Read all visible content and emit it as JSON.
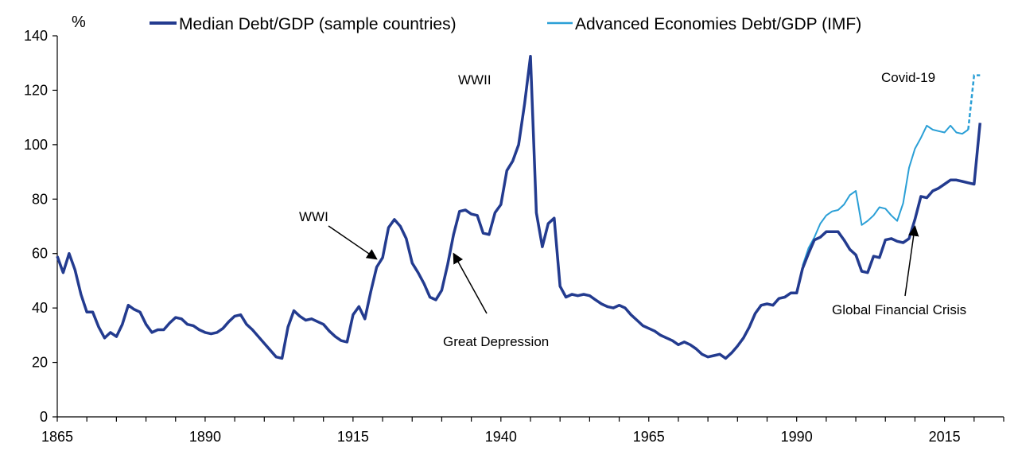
{
  "chart_data": {
    "type": "line",
    "ylabel": "%",
    "xlim": [
      1865,
      2025
    ],
    "ylim": [
      0,
      140
    ],
    "xticks": [
      1865,
      1890,
      1915,
      1940,
      1965,
      1990,
      2015
    ],
    "yticks": [
      0,
      20,
      40,
      60,
      80,
      100,
      120,
      140
    ],
    "legend_position": "top",
    "grid": false,
    "series": [
      {
        "name": "Median Debt/GDP (sample countries)",
        "color": "#233B8F",
        "points": [
          [
            1865,
            59
          ],
          [
            1866,
            53
          ],
          [
            1867,
            60
          ],
          [
            1868,
            54
          ],
          [
            1869,
            45
          ],
          [
            1870,
            38.5
          ],
          [
            1871,
            38.5
          ],
          [
            1872,
            33
          ],
          [
            1873,
            29
          ],
          [
            1874,
            31
          ],
          [
            1875,
            29.5
          ],
          [
            1876,
            34
          ],
          [
            1877,
            41
          ],
          [
            1878,
            39.5
          ],
          [
            1879,
            38.5
          ],
          [
            1880,
            34
          ],
          [
            1881,
            31
          ],
          [
            1882,
            32
          ],
          [
            1883,
            32
          ],
          [
            1884,
            34.5
          ],
          [
            1885,
            36.5
          ],
          [
            1886,
            36
          ],
          [
            1887,
            34
          ],
          [
            1888,
            33.5
          ],
          [
            1889,
            32
          ],
          [
            1890,
            31
          ],
          [
            1891,
            30.5
          ],
          [
            1892,
            31
          ],
          [
            1893,
            32.5
          ],
          [
            1894,
            35
          ],
          [
            1895,
            37
          ],
          [
            1896,
            37.5
          ],
          [
            1897,
            34
          ],
          [
            1898,
            32
          ],
          [
            1899,
            29.5
          ],
          [
            1900,
            27
          ],
          [
            1901,
            24.5
          ],
          [
            1902,
            22
          ],
          [
            1903,
            21.5
          ],
          [
            1904,
            33
          ],
          [
            1905,
            39
          ],
          [
            1906,
            37
          ],
          [
            1907,
            35.5
          ],
          [
            1908,
            36
          ],
          [
            1909,
            35
          ],
          [
            1910,
            34
          ],
          [
            1911,
            31.5
          ],
          [
            1912,
            29.5
          ],
          [
            1913,
            28
          ],
          [
            1914,
            27.5
          ],
          [
            1915,
            37.5
          ],
          [
            1916,
            40.5
          ],
          [
            1917,
            36
          ],
          [
            1918,
            46
          ],
          [
            1919,
            55
          ],
          [
            1920,
            58.5
          ],
          [
            1921,
            69.5
          ],
          [
            1922,
            72.5
          ],
          [
            1923,
            70
          ],
          [
            1924,
            65.5
          ],
          [
            1925,
            56.5
          ],
          [
            1926,
            53
          ],
          [
            1927,
            49
          ],
          [
            1928,
            44
          ],
          [
            1929,
            43
          ],
          [
            1930,
            46.5
          ],
          [
            1931,
            56
          ],
          [
            1932,
            67
          ],
          [
            1933,
            75.5
          ],
          [
            1934,
            76
          ],
          [
            1935,
            74.5
          ],
          [
            1936,
            74
          ],
          [
            1937,
            67.5
          ],
          [
            1938,
            67
          ],
          [
            1939,
            75
          ],
          [
            1940,
            78
          ],
          [
            1941,
            90.5
          ],
          [
            1942,
            94
          ],
          [
            1943,
            100
          ],
          [
            1944,
            115
          ],
          [
            1945,
            132.5
          ],
          [
            1946,
            75
          ],
          [
            1947,
            62.5
          ],
          [
            1948,
            71
          ],
          [
            1949,
            73
          ],
          [
            1950,
            48
          ],
          [
            1951,
            44
          ],
          [
            1952,
            45
          ],
          [
            1953,
            44.5
          ],
          [
            1954,
            45
          ],
          [
            1955,
            44.5
          ],
          [
            1956,
            43
          ],
          [
            1957,
            41.5
          ],
          [
            1958,
            40.5
          ],
          [
            1959,
            40
          ],
          [
            1960,
            41
          ],
          [
            1961,
            40
          ],
          [
            1962,
            37.5
          ],
          [
            1963,
            35.5
          ],
          [
            1964,
            33.5
          ],
          [
            1965,
            32.5
          ],
          [
            1966,
            31.5
          ],
          [
            1967,
            30
          ],
          [
            1968,
            29
          ],
          [
            1969,
            28
          ],
          [
            1970,
            26.5
          ],
          [
            1971,
            27.5
          ],
          [
            1972,
            26.5
          ],
          [
            1973,
            25
          ],
          [
            1974,
            23
          ],
          [
            1975,
            22
          ],
          [
            1976,
            22.5
          ],
          [
            1977,
            23
          ],
          [
            1978,
            21.5
          ],
          [
            1979,
            23.5
          ],
          [
            1980,
            26
          ],
          [
            1981,
            29
          ],
          [
            1982,
            33
          ],
          [
            1983,
            38
          ],
          [
            1984,
            41
          ],
          [
            1985,
            41.5
          ],
          [
            1986,
            41
          ],
          [
            1987,
            43.5
          ],
          [
            1988,
            44
          ],
          [
            1989,
            45.5
          ],
          [
            1990,
            45.5
          ],
          [
            1991,
            54.5
          ],
          [
            1992,
            60
          ],
          [
            1993,
            65
          ],
          [
            1994,
            66
          ],
          [
            1995,
            68
          ],
          [
            1996,
            68
          ],
          [
            1997,
            68
          ],
          [
            1998,
            65
          ],
          [
            1999,
            61.5
          ],
          [
            2000,
            59.5
          ],
          [
            2001,
            53.5
          ],
          [
            2002,
            53
          ],
          [
            2003,
            59
          ],
          [
            2004,
            58.5
          ],
          [
            2005,
            65
          ],
          [
            2006,
            65.5
          ],
          [
            2007,
            64.5
          ],
          [
            2008,
            64
          ],
          [
            2009,
            65.5
          ],
          [
            2010,
            72.5
          ],
          [
            2011,
            81
          ],
          [
            2012,
            80.5
          ],
          [
            2013,
            83
          ],
          [
            2014,
            84
          ],
          [
            2015,
            85.5
          ],
          [
            2016,
            87
          ],
          [
            2017,
            87
          ],
          [
            2018,
            86.5
          ],
          [
            2019,
            86
          ],
          [
            2020,
            85.5
          ],
          [
            2021,
            108
          ]
        ]
      },
      {
        "name": "Advanced Economies Debt/GDP (IMF)",
        "color": "#2A9FD6",
        "points": [
          [
            1991,
            55.5
          ],
          [
            1992,
            62
          ],
          [
            1993,
            66
          ],
          [
            1994,
            71
          ],
          [
            1995,
            74
          ],
          [
            1996,
            75.5
          ],
          [
            1997,
            76
          ],
          [
            1998,
            78
          ],
          [
            1999,
            81.5
          ],
          [
            2000,
            83
          ],
          [
            2001,
            70.5
          ],
          [
            2002,
            72
          ],
          [
            2003,
            74
          ],
          [
            2004,
            77
          ],
          [
            2005,
            76.5
          ],
          [
            2006,
            74
          ],
          [
            2007,
            72
          ],
          [
            2008,
            78.5
          ],
          [
            2009,
            91.5
          ],
          [
            2010,
            98.5
          ],
          [
            2011,
            102.5
          ],
          [
            2012,
            107
          ],
          [
            2013,
            105.5
          ],
          [
            2014,
            105
          ],
          [
            2015,
            104.5
          ],
          [
            2016,
            107
          ],
          [
            2017,
            104.5
          ],
          [
            2018,
            104
          ],
          [
            2019,
            105.5
          ],
          [
            2020,
            125.5
          ],
          [
            2021,
            125.5
          ]
        ],
        "dashed_from_year": 2019
      }
    ],
    "annotations": [
      {
        "text": "WWI",
        "target": [
          1919,
          58
        ]
      },
      {
        "text": "WWII"
      },
      {
        "text": "Great Depression",
        "target": [
          1932,
          60
        ]
      },
      {
        "text": "Covid-19"
      },
      {
        "text": "Global Financial Crisis",
        "target": [
          2010,
          70
        ]
      }
    ]
  }
}
